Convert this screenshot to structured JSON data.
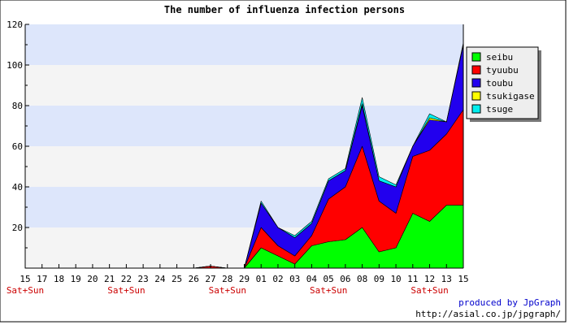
{
  "chart_data": {
    "type": "area",
    "stacked": true,
    "title": "The number of influenza infection persons",
    "xlabel": "",
    "ylabel": "",
    "ylim": [
      0,
      120
    ],
    "yticks": [
      20,
      40,
      60,
      80,
      100,
      120
    ],
    "grid": true,
    "legend_position": "top-right",
    "categories": [
      "15",
      "17",
      "18",
      "19",
      "20",
      "21",
      "22",
      "23",
      "24",
      "25",
      "26",
      "27",
      "28",
      "29",
      "01",
      "02",
      "03",
      "04",
      "05",
      "06",
      "08",
      "09",
      "10",
      "11",
      "12",
      "13",
      "15"
    ],
    "weekend_labels": [
      "Sat+Sun",
      "",
      "",
      "",
      "",
      "",
      "Sat+Sun",
      "",
      "",
      "",
      "",
      "",
      "Sat+Sun",
      "",
      "",
      "",
      "",
      "",
      "Sat+Sun",
      "",
      "",
      "",
      "",
      "",
      "Sat+Sun",
      "",
      ""
    ],
    "series": [
      {
        "name": "seibu",
        "color": "#00ff00",
        "values": [
          0,
          0,
          0,
          0,
          0,
          0,
          0,
          0,
          0,
          0,
          0,
          0,
          0,
          0,
          10,
          6,
          2,
          11,
          13,
          14,
          20,
          8,
          10,
          27,
          23,
          31,
          31
        ]
      },
      {
        "name": "tyuubu",
        "color": "#ff0000",
        "values": [
          0,
          0,
          0,
          0,
          0,
          0,
          0,
          0,
          0,
          0,
          0,
          1,
          0,
          0,
          10,
          5,
          4,
          5,
          21,
          26,
          40,
          25,
          17,
          28,
          35,
          35,
          47
        ]
      },
      {
        "name": "toubu",
        "color": "#2200ee",
        "values": [
          0,
          0,
          0,
          0,
          0,
          0,
          0,
          0,
          0,
          0,
          0,
          0,
          0,
          0,
          12,
          9,
          9,
          6,
          9,
          8,
          20,
          10,
          13,
          5,
          15,
          6,
          32
        ]
      },
      {
        "name": "tsukigase",
        "color": "#ffff00",
        "values": [
          0,
          0,
          0,
          0,
          0,
          0,
          0,
          0,
          0,
          0,
          0,
          0,
          0,
          0,
          0,
          0,
          0,
          0,
          0,
          0,
          1,
          0,
          0,
          0,
          1,
          0,
          0
        ]
      },
      {
        "name": "tsuge",
        "color": "#00eeee",
        "values": [
          0,
          0,
          0,
          0,
          0,
          0,
          0,
          0,
          0,
          0,
          0,
          0,
          0,
          0,
          1,
          0,
          1,
          1,
          1,
          1,
          3,
          2,
          1,
          0,
          2,
          0,
          1
        ]
      }
    ]
  },
  "footer": {
    "produced_by": "produced by JpGraph",
    "url": "http://asial.co.jp/jpgraph/"
  }
}
